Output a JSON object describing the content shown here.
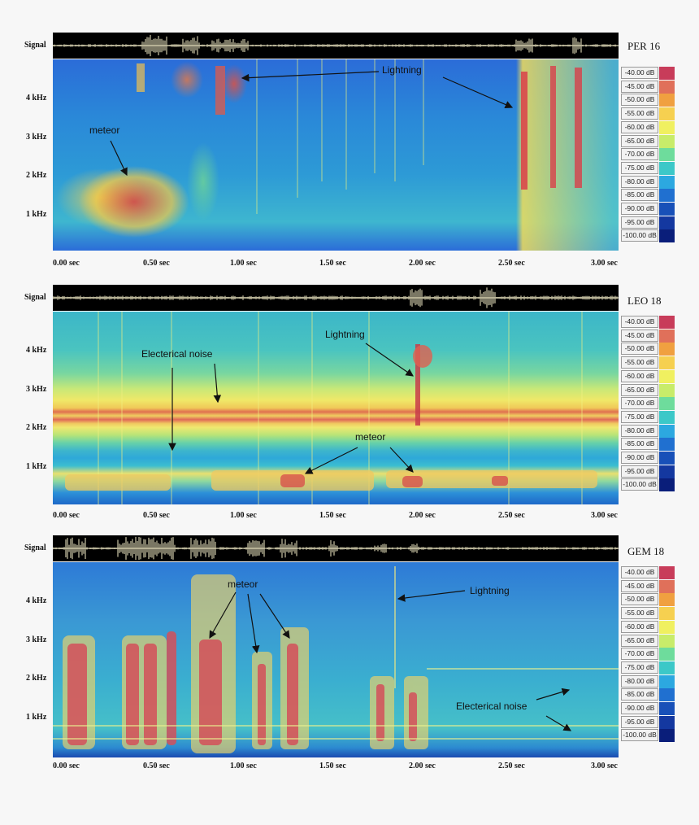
{
  "panels": [
    {
      "title": "PER 16",
      "signal_label": "Signal",
      "freq_labels": [
        "4 kHz",
        "3 kHz",
        "2 kHz",
        "1 kHz"
      ],
      "time_labels": [
        "0.00 sec",
        "0.50 sec",
        "1.00 sec",
        "1.50 sec",
        "2.00 sec",
        "2.50 sec",
        "3.00 sec"
      ],
      "annotations": [
        "Lightning",
        "meteor"
      ]
    },
    {
      "title": "LEO 18",
      "signal_label": "Signal",
      "freq_labels": [
        "4 kHz",
        "3 kHz",
        "2 kHz",
        "1 kHz"
      ],
      "time_labels": [
        "0.00 sec",
        "0.50 sec",
        "1.00 sec",
        "1.50 sec",
        "2.00 sec",
        "2.50 sec",
        "3.00 sec"
      ],
      "annotations": [
        "Lightning",
        "Electerical noise",
        "meteor"
      ]
    },
    {
      "title": "GEM 18",
      "signal_label": "Signal",
      "freq_labels": [
        "4 kHz",
        "3 kHz",
        "2 kHz",
        "1 kHz"
      ],
      "time_labels": [
        "0.00 sec",
        "0.50 sec",
        "1.00 sec",
        "1.50 sec",
        "2.00 sec",
        "2.50 sec",
        "3.00 sec"
      ],
      "annotations": [
        "meteor",
        "Lightning",
        "Electerical noise"
      ]
    }
  ],
  "db_scale": {
    "labels": [
      "-40.00 dB",
      "-45.00 dB",
      "-50.00 dB",
      "-55.00 dB",
      "-60.00 dB",
      "-65.00 dB",
      "-70.00 dB",
      "-75.00 dB",
      "-80.00 dB",
      "-85.00 dB",
      "-90.00 dB",
      "-95.00 dB",
      "-100.00 dB"
    ],
    "colors": [
      "#c83c5a",
      "#e0705a",
      "#f0a040",
      "#f6d050",
      "#f0f060",
      "#c8ec6a",
      "#6edc9c",
      "#3cc8c8",
      "#2ca8e0",
      "#2070d0",
      "#1850b8",
      "#1438a0",
      "#0a1e7a"
    ]
  }
}
